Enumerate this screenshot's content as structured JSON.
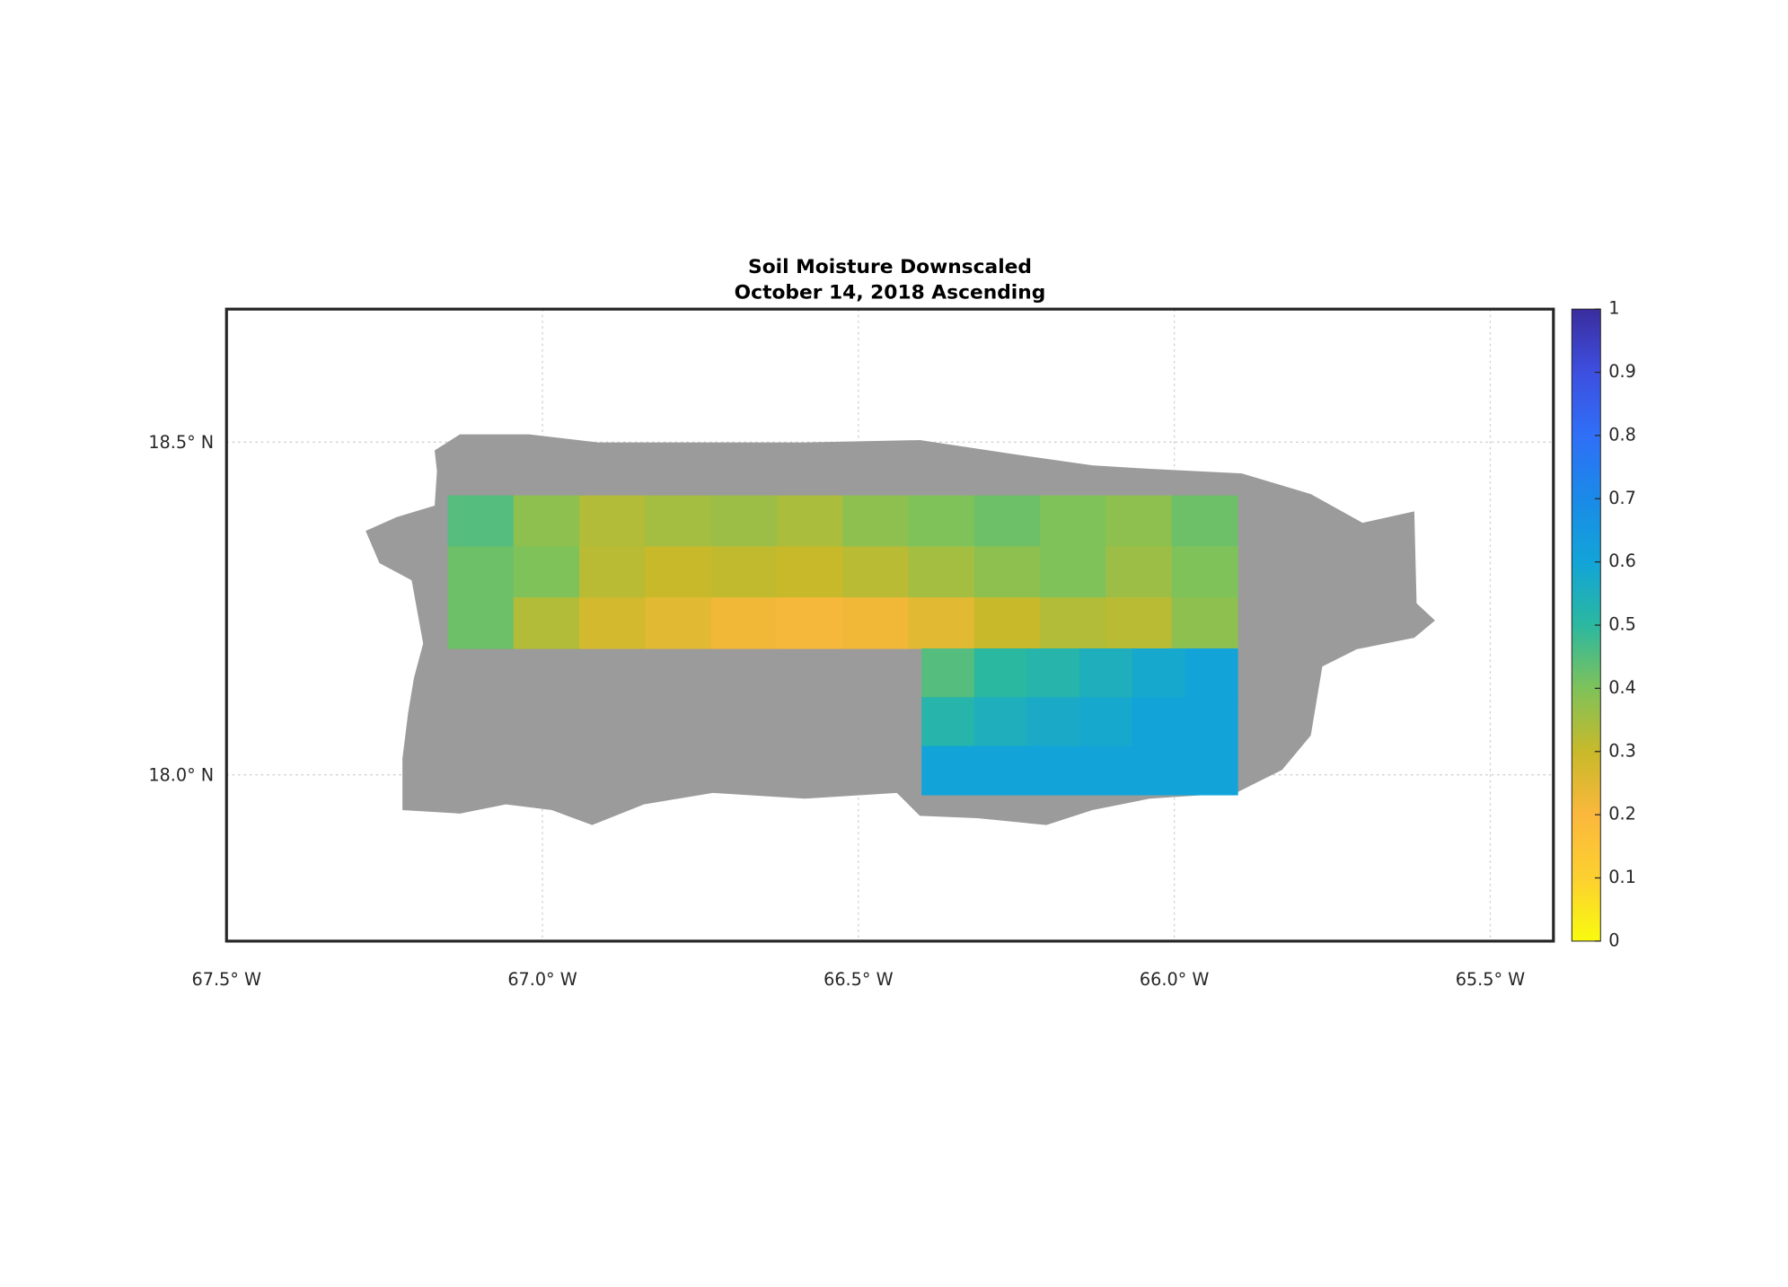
{
  "map": {
    "title": [
      "Soil Moisture Downscaled",
      "October 14, 2018 Ascending"
    ],
    "xlim": [
      -67.5,
      -65.4
    ],
    "ylim": [
      17.75,
      18.7
    ],
    "xticks": [
      {
        "value": -67.5,
        "label": "67.5° W"
      },
      {
        "value": -67.0,
        "label": "67.0° W"
      },
      {
        "value": -66.5,
        "label": "66.5° W"
      },
      {
        "value": -66.0,
        "label": "66.0° W"
      },
      {
        "value": -65.5,
        "label": "65.5° W"
      }
    ],
    "yticks": [
      {
        "value": 18.0,
        "label": "18.0° N"
      },
      {
        "value": 18.5,
        "label": "18.5° N"
      }
    ],
    "grid": true,
    "land_color": "#9b9b9b",
    "layers": [
      {
        "lon_range": [
          -67.15,
          -65.9
        ],
        "lat_range": [
          18.42,
          18.19
        ],
        "values": [
          [
            0.45,
            0.38,
            0.33,
            0.35,
            0.36,
            0.34,
            0.38,
            0.4,
            0.42,
            0.4,
            0.38,
            0.42
          ],
          [
            0.42,
            0.4,
            0.32,
            0.3,
            0.31,
            0.3,
            0.32,
            0.35,
            0.38,
            0.4,
            0.36,
            0.4
          ],
          [
            0.42,
            0.33,
            0.28,
            0.25,
            0.22,
            0.21,
            0.22,
            0.25,
            0.3,
            0.33,
            0.32,
            0.38
          ]
        ]
      },
      {
        "lon_range": [
          -66.4,
          -65.9
        ],
        "lat_range": [
          18.19,
          17.97
        ],
        "values": [
          [
            0.45,
            0.5,
            0.52,
            0.55,
            0.58,
            0.6
          ],
          [
            0.52,
            0.55,
            0.57,
            0.58,
            0.6,
            0.6
          ],
          [
            0.6,
            0.6,
            0.6,
            0.6,
            0.6,
            0.6
          ]
        ]
      }
    ],
    "colorbar": {
      "lim": [
        0,
        1
      ],
      "ticks": [
        0,
        0.1,
        0.2,
        0.3,
        0.4,
        0.5,
        0.6,
        0.7,
        0.8,
        0.9,
        1
      ],
      "colors": [
        "#f9fb0e",
        "#fcd030",
        "#fbb83c",
        "#c8b92a",
        "#7fc25a",
        "#2bb8a0",
        "#12a4d8",
        "#1a8ae8",
        "#2f6ff7",
        "#3d4fe0",
        "#3a2d9e"
      ]
    }
  }
}
